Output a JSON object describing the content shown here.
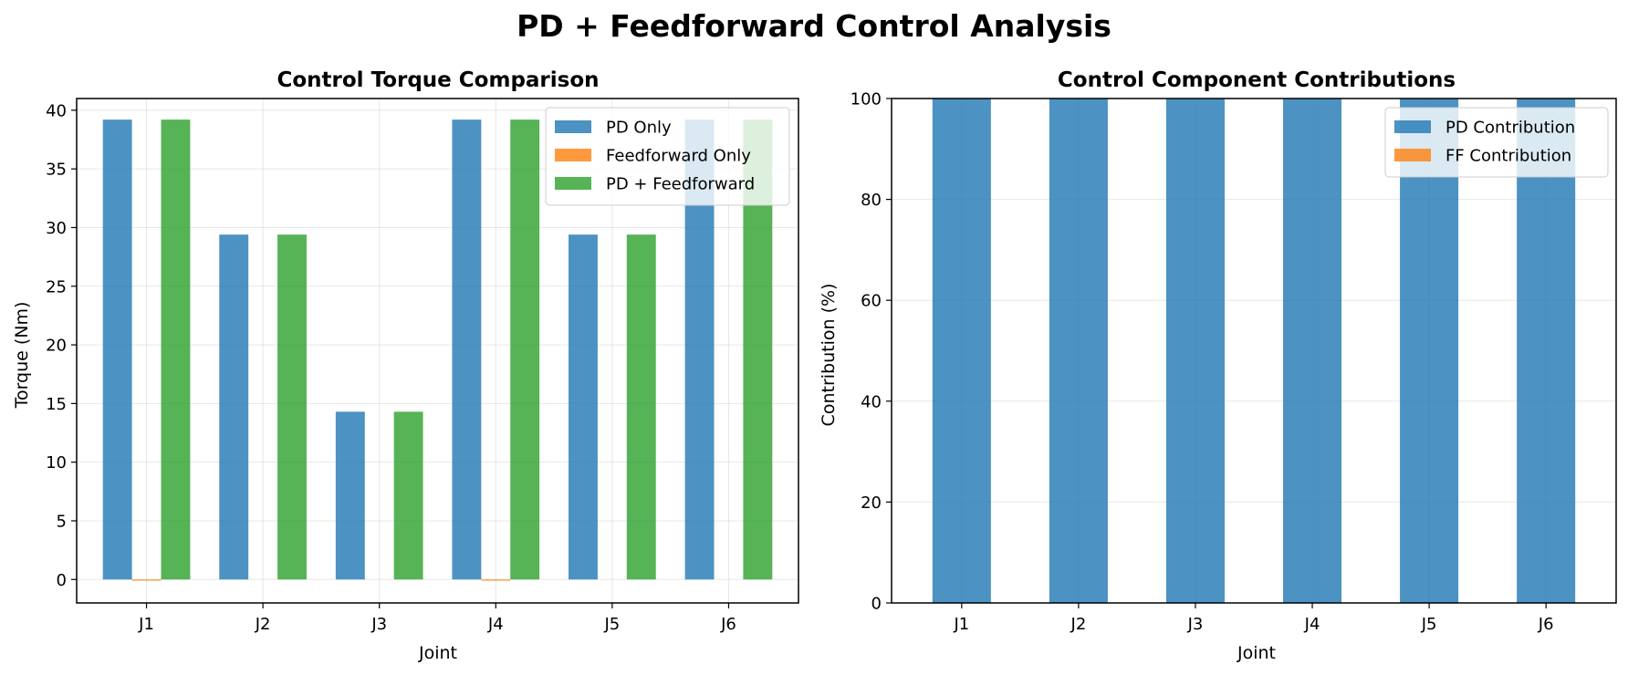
{
  "suptitle": "PD + Feedforward Control Analysis",
  "chart_data": [
    {
      "type": "bar",
      "title": "Control Torque Comparison",
      "xlabel": "Joint",
      "ylabel": "Torque (Nm)",
      "categories": [
        "J1",
        "J2",
        "J3",
        "J4",
        "J5",
        "J6"
      ],
      "ylim": [
        -2,
        41
      ],
      "yticks": [
        0,
        5,
        10,
        15,
        20,
        25,
        30,
        35,
        40
      ],
      "grid": true,
      "legend_position": "top-right",
      "series": [
        {
          "name": "PD Only",
          "color": "#1f77b4",
          "values": [
            39.2,
            29.4,
            14.3,
            39.2,
            29.4,
            39.2
          ]
        },
        {
          "name": "Feedforward Only",
          "color": "#ff7f0e",
          "values": [
            -0.1,
            0.0,
            0.0,
            -0.1,
            0.0,
            0.0
          ]
        },
        {
          "name": "PD + Feedforward",
          "color": "#2ca02c",
          "values": [
            39.2,
            29.4,
            14.3,
            39.2,
            29.4,
            39.2
          ]
        }
      ]
    },
    {
      "type": "bar",
      "stacked": true,
      "title": "Control Component Contributions",
      "xlabel": "Joint",
      "ylabel": "Contribution (%)",
      "categories": [
        "J1",
        "J2",
        "J3",
        "J4",
        "J5",
        "J6"
      ],
      "ylim": [
        0,
        100
      ],
      "yticks": [
        0,
        20,
        40,
        60,
        80,
        100
      ],
      "grid": true,
      "legend_position": "top-right",
      "series": [
        {
          "name": "PD Contribution",
          "color": "#1f77b4",
          "values": [
            100,
            100,
            100,
            100,
            100,
            100
          ]
        },
        {
          "name": "FF Contribution",
          "color": "#ff7f0e",
          "values": [
            0,
            0,
            0,
            0,
            0,
            0
          ]
        }
      ]
    }
  ]
}
